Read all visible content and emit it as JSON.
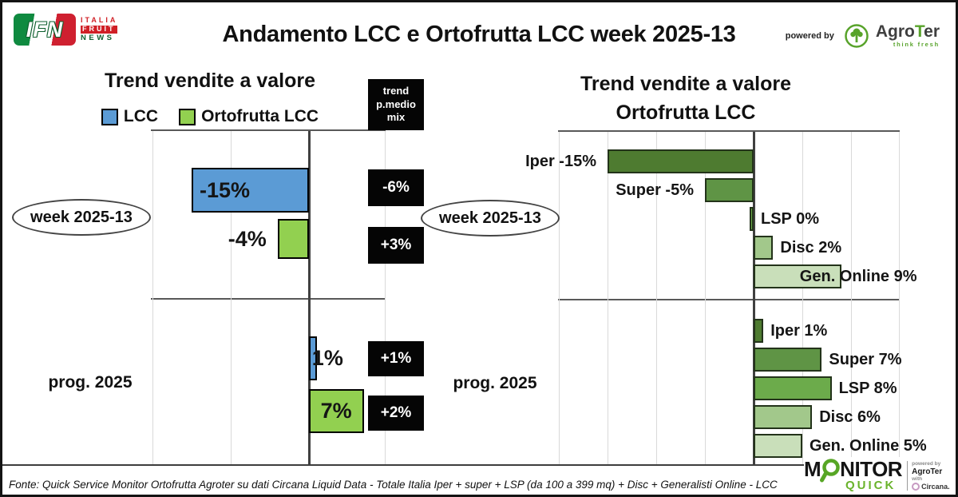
{
  "page": {
    "title": "Andamento LCC e Ortofrutta LCC week 2025-13",
    "fonte": "Fonte: Quick Service Monitor Ortofrutta Agroter su dati Circana Liquid Data - Totale Italia Iper + super + LSP (da 100 a 399 mq) + Disc + Generalisti Online - LCC"
  },
  "header": {
    "powered_by": "powered by"
  },
  "logos": {
    "ifn": {
      "acronym": "IFN",
      "line1": "ITALIA",
      "line2": "FRUIT",
      "line3": "NEWS"
    },
    "agroter": {
      "name_part1": "Agro",
      "name_part2": "T",
      "name_part3": "er",
      "tagline": "think fresh"
    },
    "monitor": {
      "word_prefix": "M",
      "word_suffix": "NITOR",
      "word2": "QUICK",
      "powered_by": "powered by",
      "partner": "AgroTer",
      "with_label": "with",
      "data_partner": "Circana."
    }
  },
  "chart_data": [
    {
      "type": "bar",
      "orientation": "horizontal",
      "title": "Trend vendite a valore",
      "unit": "%",
      "x_range": [
        -20,
        10
      ],
      "gridline_step": 10,
      "grid": true,
      "legend": [
        {
          "name": "LCC",
          "color": "#5b9bd5"
        },
        {
          "name": "Ortofrutta LCC",
          "color": "#92d050"
        }
      ],
      "side_header": {
        "lines": [
          "trend",
          "p.medio",
          "mix"
        ]
      },
      "groups": [
        {
          "label": "week 2025-13",
          "bars": [
            {
              "series": "LCC",
              "value": -15,
              "label": "-15%",
              "trend_p_medio_mix": "-6%"
            },
            {
              "series": "Ortofrutta LCC",
              "value": -4,
              "label": "-4%",
              "trend_p_medio_mix": "+3%"
            }
          ]
        },
        {
          "label": "prog. 2025",
          "bars": [
            {
              "series": "LCC",
              "value": 1,
              "label": "1%",
              "trend_p_medio_mix": "+1%"
            },
            {
              "series": "Ortofrutta LCC",
              "value": 7,
              "label": "7%",
              "trend_p_medio_mix": "+2%"
            }
          ]
        }
      ]
    },
    {
      "type": "bar",
      "orientation": "horizontal",
      "title": "Trend vendite a valore Ortofrutta LCC",
      "title_lines": [
        "Trend vendite a valore",
        "Ortofrutta LCC"
      ],
      "unit": "%",
      "x_range": [
        -20,
        15
      ],
      "gridline_step": 5,
      "grid": true,
      "palette": {
        "Iper": "#4e7b30",
        "Super": "#5f9445",
        "LSP": "#6cab4b",
        "Disc": "#a2c88b",
        "Gen. Online": "#c9dfba"
      },
      "groups": [
        {
          "label": "week 2025-13",
          "bars": [
            {
              "category": "Iper",
              "value": -15,
              "label": "Iper -15%"
            },
            {
              "category": "Super",
              "value": -5,
              "label": "Super -5%"
            },
            {
              "category": "LSP",
              "value": 0,
              "label": "LSP 0%"
            },
            {
              "category": "Disc",
              "value": 2,
              "label": "Disc 2%"
            },
            {
              "category": "Gen. Online",
              "value": 9,
              "label": "Gen. Online 9%"
            }
          ]
        },
        {
          "label": "prog. 2025",
          "bars": [
            {
              "category": "Iper",
              "value": 1,
              "label": "Iper 1%"
            },
            {
              "category": "Super",
              "value": 7,
              "label": "Super 7%"
            },
            {
              "category": "LSP",
              "value": 8,
              "label": "LSP 8%"
            },
            {
              "category": "Disc",
              "value": 6,
              "label": "Disc 6%"
            },
            {
              "category": "Gen. Online",
              "value": 5,
              "label": "Gen. Online 5%"
            }
          ]
        }
      ]
    }
  ]
}
